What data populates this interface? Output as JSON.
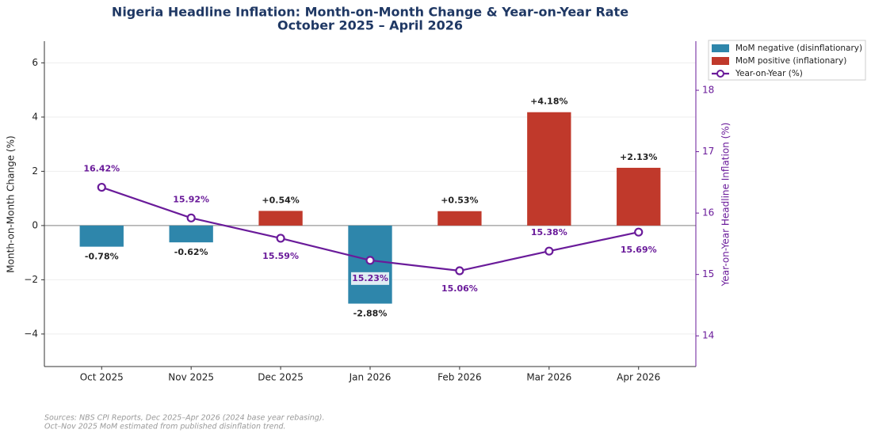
{
  "chart_data": {
    "type": "bar",
    "title": "Nigeria Headline Inflation: Month-on-Month Change & Year-on-Year Rate",
    "subtitle": "October 2025 – April 2026",
    "ylabel": "Month-on-Month Change (%)",
    "y2label": "Year-on-Year Headline Inflation (%)",
    "categories": [
      "Oct 2025",
      "Nov 2025",
      "Dec 2025",
      "Jan 2026",
      "Feb 2026",
      "Mar 2026",
      "Apr 2026"
    ],
    "ylim": [
      -5.2,
      6.8
    ],
    "yticks": [
      {
        "value": -4,
        "label": "−4"
      },
      {
        "value": -2,
        "label": "−2"
      },
      0,
      2,
      4,
      6
    ],
    "y2lim": [
      13.5,
      18.8
    ],
    "y2ticks": [
      14,
      15,
      16,
      17,
      18
    ],
    "grid": true,
    "legend": "outside-upper-right",
    "series": [
      {
        "name": "MoM negative (disinflationary)",
        "type": "bar",
        "color": "#2e86ab",
        "values": [
          -0.78,
          -0.62,
          null,
          -2.88,
          null,
          null,
          null
        ],
        "value_labels": [
          "-0.78%",
          "-0.62%",
          null,
          "-2.88%",
          null,
          null,
          null
        ]
      },
      {
        "name": "MoM positive (inflationary)",
        "type": "bar",
        "color": "#c0392b",
        "values": [
          null,
          null,
          0.54,
          null,
          0.53,
          4.18,
          2.13
        ],
        "value_labels": [
          null,
          null,
          "+0.54%",
          null,
          "+0.53%",
          "+4.18%",
          "+2.13%"
        ]
      },
      {
        "name": "Year-on-Year (%)",
        "type": "line",
        "axis": "y2",
        "color": "#6a1b9a",
        "values": [
          16.42,
          15.92,
          15.59,
          15.23,
          15.06,
          15.38,
          15.69
        ],
        "value_labels": [
          "16.42%",
          "15.92%",
          "15.59%",
          "15.23%",
          "15.06%",
          "15.38%",
          "15.69%"
        ]
      }
    ],
    "notes": [
      "Sources: NBS CPI Reports, Dec 2025–Apr 2026 (2024 base year rebasing).",
      "Oct–Nov 2025 MoM estimated from published disinflation trend."
    ]
  }
}
